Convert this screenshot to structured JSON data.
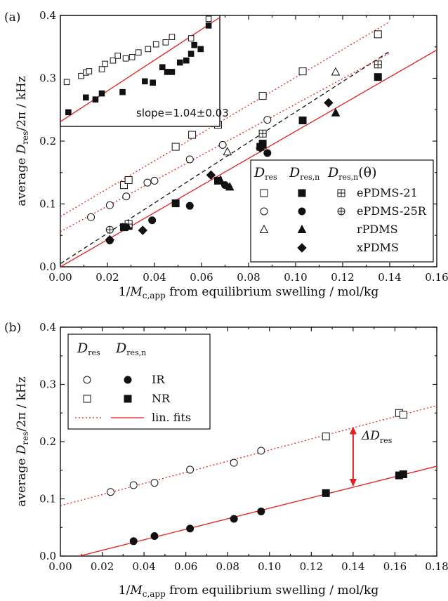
{
  "colors": {
    "fit": "#e02020",
    "guide": "#111111",
    "frame": "#111111"
  },
  "chart_data": [
    {
      "type": "scatter",
      "panel_label": "(a)",
      "xlabel": "1/M_c,app from equilibrium swelling / mol/kg",
      "ylabel": "average D_res/2π / kHz",
      "xlim": [
        0,
        0.16
      ],
      "ylim": [
        0,
        0.4
      ],
      "xticks": [
        "0.00",
        "0.02",
        "0.04",
        "0.06",
        "0.08",
        "0.10",
        "0.12",
        "0.14",
        "0.16"
      ],
      "yticks": [
        "0.0",
        "0.1",
        "0.2",
        "0.3",
        "0.4"
      ],
      "legend_placement": "lower-right",
      "legend_headers": [
        "D_res",
        "D_res,n",
        "D_res,n(θ)"
      ],
      "series": [
        {
          "name": "ePDMS-21",
          "column": "D_res",
          "marker": "square-open",
          "points": [
            [
              0.027,
              0.13
            ],
            [
              0.029,
              0.138
            ],
            [
              0.049,
              0.191
            ],
            [
              0.056,
              0.21
            ],
            [
              0.067,
              0.226
            ],
            [
              0.086,
              0.272
            ],
            [
              0.103,
              0.311
            ],
            [
              0.135,
              0.37
            ]
          ]
        },
        {
          "name": "ePDMS-21",
          "column": "D_res,n",
          "marker": "square-filled",
          "points": [
            [
              0.027,
              0.063
            ],
            [
              0.029,
              0.065
            ],
            [
              0.049,
              0.101
            ],
            [
              0.067,
              0.137
            ],
            [
              0.085,
              0.191
            ],
            [
              0.086,
              0.196
            ],
            [
              0.103,
              0.233
            ],
            [
              0.135,
              0.302
            ]
          ]
        },
        {
          "name": "ePDMS-21",
          "column": "D_res,n(θ)",
          "marker": "square-plus",
          "points": [
            [
              0.029,
              0.068
            ],
            [
              0.086,
              0.212
            ],
            [
              0.135,
              0.322
            ]
          ]
        },
        {
          "name": "ePDMS-25R",
          "column": "D_res",
          "marker": "circle-open",
          "points": [
            [
              0.013,
              0.079
            ],
            [
              0.021,
              0.098
            ],
            [
              0.028,
              0.112
            ],
            [
              0.037,
              0.134
            ],
            [
              0.04,
              0.137
            ],
            [
              0.055,
              0.171
            ],
            [
              0.069,
              0.194
            ],
            [
              0.088,
              0.234
            ]
          ]
        },
        {
          "name": "ePDMS-25R",
          "column": "D_res,n",
          "marker": "circle-filled",
          "points": [
            [
              0.021,
              0.042
            ],
            [
              0.028,
              0.063
            ],
            [
              0.039,
              0.074
            ],
            [
              0.055,
              0.097
            ],
            [
              0.07,
              0.13
            ],
            [
              0.088,
              0.181
            ]
          ]
        },
        {
          "name": "ePDMS-25R",
          "column": "D_res,n(θ)",
          "marker": "circle-plus",
          "points": [
            [
              0.021,
              0.059
            ]
          ]
        },
        {
          "name": "rPDMS",
          "column": "D_res",
          "marker": "triangle-open",
          "points": [
            [
              0.071,
              0.183
            ],
            [
              0.117,
              0.31
            ]
          ]
        },
        {
          "name": "rPDMS",
          "column": "D_res,n",
          "marker": "triangle-filled",
          "points": [
            [
              0.068,
              0.138
            ],
            [
              0.072,
              0.127
            ],
            [
              0.086,
              0.194
            ],
            [
              0.117,
              0.245
            ]
          ]
        },
        {
          "name": "xPDMS",
          "column": "D_res,n",
          "marker": "diamond-filled",
          "points": [
            [
              0.021,
              0.043
            ],
            [
              0.035,
              0.058
            ],
            [
              0.064,
              0.146
            ],
            [
              0.085,
              0.189
            ],
            [
              0.114,
              0.261
            ]
          ]
        }
      ],
      "lines": [
        {
          "style": "solid-red",
          "from": [
            0,
            0.0
          ],
          "to": [
            0.16,
            0.345
          ]
        },
        {
          "style": "dashed-black",
          "from": [
            0,
            0.005
          ],
          "to": [
            0.14,
            0.343
          ]
        },
        {
          "style": "dotted-red",
          "from": [
            0,
            0.08
          ],
          "to": [
            0.14,
            0.39
          ]
        },
        {
          "style": "dotted-red",
          "from": [
            0,
            0.056
          ],
          "to": [
            0.14,
            0.34
          ]
        }
      ],
      "inset": {
        "annotation": "slope=1.04±0.03",
        "open_points": [
          [
            0.04,
            0.291
          ],
          [
            0.13,
            0.3
          ],
          [
            0.16,
            0.305
          ],
          [
            0.18,
            0.307
          ],
          [
            0.26,
            0.31
          ],
          [
            0.28,
            0.318
          ],
          [
            0.33,
            0.323
          ],
          [
            0.36,
            0.33
          ],
          [
            0.41,
            0.326
          ],
          [
            0.45,
            0.328
          ],
          [
            0.49,
            0.335
          ],
          [
            0.55,
            0.34
          ],
          [
            0.6,
            0.347
          ],
          [
            0.66,
            0.35
          ],
          [
            0.7,
            0.358
          ],
          [
            0.82,
            0.356
          ],
          [
            0.93,
            0.385
          ]
        ],
        "filled_points": [
          [
            0.05,
            0.246
          ],
          [
            0.16,
            0.268
          ],
          [
            0.22,
            0.265
          ],
          [
            0.26,
            0.274
          ],
          [
            0.39,
            0.276
          ],
          [
            0.53,
            0.292
          ],
          [
            0.58,
            0.29
          ],
          [
            0.64,
            0.313
          ],
          [
            0.67,
            0.306
          ],
          [
            0.7,
            0.306
          ],
          [
            0.75,
            0.32
          ],
          [
            0.79,
            0.323
          ],
          [
            0.82,
            0.333
          ],
          [
            0.84,
            0.346
          ],
          [
            0.88,
            0.34
          ],
          [
            0.93,
            0.375
          ]
        ],
        "fit_from": [
          0,
          0.232
        ],
        "fit_to": [
          1.0,
          0.387
        ]
      }
    },
    {
      "type": "scatter",
      "panel_label": "(b)",
      "xlabel": "1/M_c,app from equilibrium swelling / mol/kg",
      "ylabel": "average D_res/2π / kHz",
      "xlim": [
        0,
        0.18
      ],
      "ylim": [
        0,
        0.4
      ],
      "xticks": [
        "0.00",
        "0.02",
        "0.04",
        "0.06",
        "0.08",
        "0.10",
        "0.12",
        "0.14",
        "0.16",
        "0.18"
      ],
      "yticks": [
        "0.0",
        "0.1",
        "0.2",
        "0.3",
        "0.4"
      ],
      "legend_placement": "top-left",
      "legend_headers": [
        "D_res",
        "D_res,n"
      ],
      "legend_rows": [
        "IR",
        "NR",
        "lin. fits"
      ],
      "annotation": "ΔD_res",
      "series": [
        {
          "name": "IR",
          "column": "D_res",
          "marker": "circle-open",
          "points": [
            [
              0.024,
              0.112
            ],
            [
              0.035,
              0.124
            ],
            [
              0.045,
              0.128
            ],
            [
              0.062,
              0.151
            ],
            [
              0.083,
              0.163
            ],
            [
              0.096,
              0.184
            ]
          ]
        },
        {
          "name": "NR",
          "column": "D_res",
          "marker": "square-open",
          "points": [
            [
              0.127,
              0.209
            ],
            [
              0.162,
              0.25
            ],
            [
              0.164,
              0.247
            ]
          ]
        },
        {
          "name": "IR",
          "column": "D_res,n",
          "marker": "circle-filled",
          "points": [
            [
              0.035,
              0.026
            ],
            [
              0.045,
              0.035
            ],
            [
              0.062,
              0.048
            ],
            [
              0.083,
              0.065
            ],
            [
              0.096,
              0.078
            ]
          ]
        },
        {
          "name": "NR",
          "column": "D_res,n",
          "marker": "square-filled",
          "points": [
            [
              0.127,
              0.11
            ],
            [
              0.162,
              0.141
            ],
            [
              0.164,
              0.143
            ]
          ]
        }
      ],
      "lines": [
        {
          "style": "dotted-red",
          "from": [
            0,
            0.088
          ],
          "to": [
            0.18,
            0.263
          ]
        },
        {
          "style": "solid-red",
          "from": [
            0.009,
            0.0
          ],
          "to": [
            0.18,
            0.157
          ]
        }
      ],
      "delta_arrow": {
        "x": 0.14,
        "y_from": 0.124,
        "y_to": 0.224
      }
    }
  ],
  "legend_a": {
    "header_main": "D",
    "header_sub_1": "res",
    "header_sub_2": "res,n",
    "header_theta": "(θ)",
    "rows": [
      "ePDMS-21",
      "ePDMS-25R",
      "rPDMS",
      "xPDMS"
    ]
  },
  "legend_b": {
    "header_main": "D",
    "header_sub_1": "res",
    "header_sub_2": "res,n",
    "rows": [
      "IR",
      "NR",
      "lin. fits"
    ]
  },
  "text": {
    "panel_a": "(a)",
    "panel_b": "(b)",
    "ylabel_main": "average ",
    "ylabel_D": "D",
    "ylabel_sub": "res",
    "ylabel_tail": "/2π  /  kHz",
    "xlabel_head": "1/",
    "xlabel_M": "M",
    "xlabel_sub": "c,app",
    "xlabel_tail": " from equilibrium swelling  /  mol/kg",
    "inset_slope": "slope=1.04±0.03",
    "delta_D": "ΔD",
    "delta_sub": "res"
  }
}
